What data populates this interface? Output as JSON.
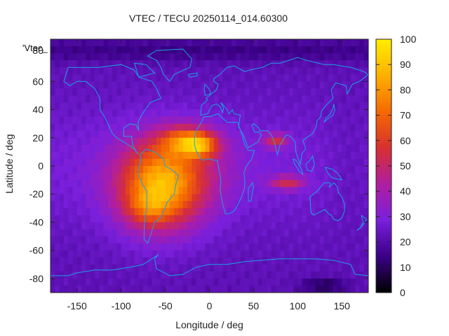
{
  "chart_data": {
    "type": "heatmap",
    "title": "VTEC / TECU 20250114_014.60300",
    "xlabel": "Longitude / deg",
    "ylabel": "Latitude / deg",
    "series_label": "'Vtec_",
    "xlim": [
      -180,
      180
    ],
    "ylim": [
      -90,
      90
    ],
    "x_ticks": [
      -150,
      -100,
      -50,
      0,
      50,
      100,
      150
    ],
    "y_ticks": [
      60,
      40,
      20,
      0,
      -20,
      -40,
      -60,
      -80
    ],
    "y_tick_top_partial": "80",
    "colorbar": {
      "min": 0,
      "max": 100,
      "ticks": [
        0,
        10,
        20,
        30,
        40,
        50,
        60,
        70,
        80,
        90,
        100
      ],
      "colors": [
        "#000000",
        "#3a0086",
        "#7a1fdc",
        "#b01ea0",
        "#d83030",
        "#f56a00",
        "#ffb000",
        "#ffee00"
      ]
    },
    "background_level": 22,
    "features": [
      {
        "name": "equatorial-anomaly-americas-atlantic",
        "lon": -55,
        "lat": -15,
        "lon_width": 48,
        "lat_width": 30,
        "peak": 55
      },
      {
        "name": "north-crest-atlantic",
        "lon": -25,
        "lat": 18,
        "lon_width": 30,
        "lat_width": 10,
        "peak": 35
      },
      {
        "name": "crest-africa-west",
        "lon": -10,
        "lat": 14,
        "lon_width": 20,
        "lat_width": 8,
        "peak": 28
      },
      {
        "name": "south-crest-south-america",
        "lon": -70,
        "lat": -30,
        "lon_width": 25,
        "lat_width": 12,
        "peak": 15
      },
      {
        "name": "indian-ocean-north-crest",
        "lon": 75,
        "lat": 18,
        "lon_width": 14,
        "lat_width": 5,
        "peak": 28
      },
      {
        "name": "indian-ocean-south-crest",
        "lon": 88,
        "lat": -12,
        "lon_width": 20,
        "lat_width": 5,
        "peak": 26
      },
      {
        "name": "atlantic-equatorial-band",
        "lon": -30,
        "lat": 0,
        "lon_width": 60,
        "lat_width": 28,
        "peak": 10
      },
      {
        "name": "polar-trough-north",
        "lon": 0,
        "lat": 82,
        "lon_width": 400,
        "lat_width": 8,
        "peak": -8
      },
      {
        "name": "south-polar-dark-spot",
        "lon": 130,
        "lat": -85,
        "lon_width": 25,
        "lat_width": 5,
        "peak": -14
      },
      {
        "name": "pacific-low",
        "lon": 160,
        "lat": 0,
        "lon_width": 30,
        "lat_width": 40,
        "peak": -4
      }
    ],
    "coastline_color": "#1aa0e6"
  }
}
